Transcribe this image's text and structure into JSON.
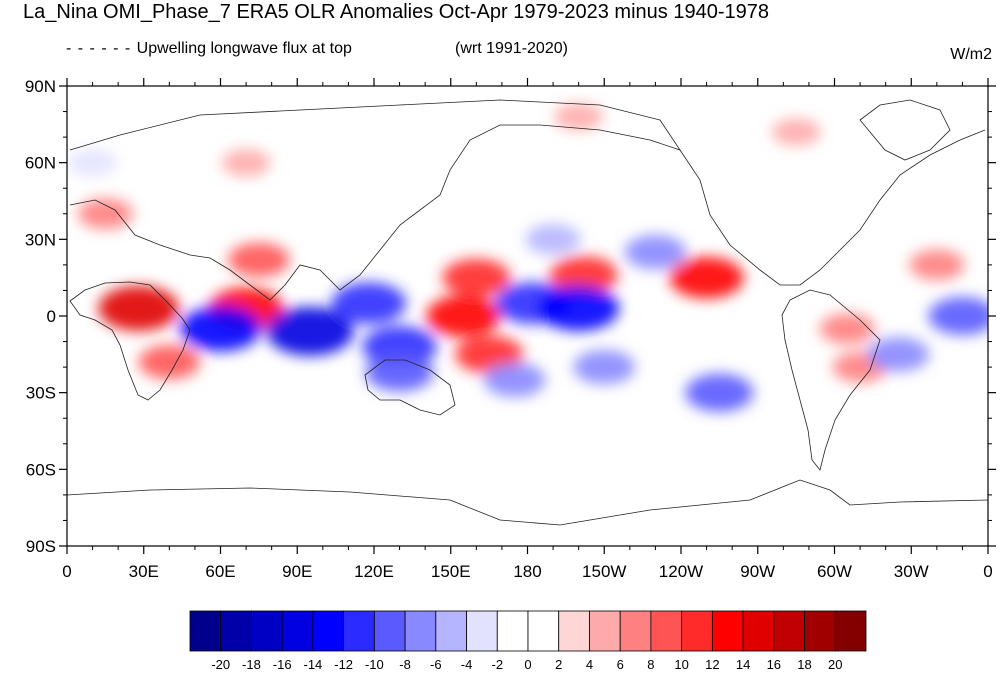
{
  "title": "La_Nina OMI_Phase_7 ERA5 OLR Anomalies Oct-Apr 1979-2023 minus 1940-1978",
  "subtitle_left": "Upwelling longwave flux at top",
  "subtitle_right": "(wrt 1991-2020)",
  "units": "W/m2",
  "map": {
    "lon_range": [
      0,
      360
    ],
    "lat_range": [
      -90,
      90
    ],
    "lat_ticks": [
      {
        "value": 90,
        "label": "90N"
      },
      {
        "value": 60,
        "label": "60N"
      },
      {
        "value": 30,
        "label": "30N"
      },
      {
        "value": 0,
        "label": "0"
      },
      {
        "value": -30,
        "label": "30S"
      },
      {
        "value": -60,
        "label": "60S"
      },
      {
        "value": -90,
        "label": "90S"
      }
    ],
    "lon_ticks": [
      {
        "value": 0,
        "label": "0"
      },
      {
        "value": 30,
        "label": "30E"
      },
      {
        "value": 60,
        "label": "60E"
      },
      {
        "value": 90,
        "label": "90E"
      },
      {
        "value": 120,
        "label": "120E"
      },
      {
        "value": 150,
        "label": "150E"
      },
      {
        "value": 180,
        "label": "180"
      },
      {
        "value": 210,
        "label": "150W"
      },
      {
        "value": 240,
        "label": "120W"
      },
      {
        "value": 270,
        "label": "90W"
      },
      {
        "value": 300,
        "label": "60W"
      },
      {
        "value": 330,
        "label": "30W"
      },
      {
        "value": 360,
        "label": "0"
      }
    ]
  },
  "colorbar": {
    "levels": [
      "-20",
      "-18",
      "-16",
      "-14",
      "-12",
      "-10",
      "-8",
      "-6",
      "-4",
      "-2",
      "0",
      "2",
      "4",
      "6",
      "8",
      "10",
      "12",
      "14",
      "16",
      "18",
      "20"
    ],
    "colors": [
      "#00008c",
      "#0000a8",
      "#0000c4",
      "#0000e0",
      "#0000ff",
      "#2b2bff",
      "#5a5aff",
      "#8888ff",
      "#b5b5ff",
      "#e2e2ff",
      "#ffffff",
      "#ffffff",
      "#ffd6d6",
      "#ffaaaa",
      "#ff8080",
      "#ff5454",
      "#ff2a2a",
      "#ff0000",
      "#e00000",
      "#c00000",
      "#a00000",
      "#840000"
    ]
  },
  "anomaly_regions": [
    {
      "lon": 28,
      "lat": 3,
      "value": 14
    },
    {
      "lon": 70,
      "lat": 3,
      "value": 12
    },
    {
      "lon": 15,
      "lat": 40,
      "value": 6
    },
    {
      "lon": 75,
      "lat": 22,
      "value": 8
    },
    {
      "lon": 155,
      "lat": 0,
      "value": 12
    },
    {
      "lon": 160,
      "lat": 15,
      "value": 10
    },
    {
      "lon": 202,
      "lat": 16,
      "value": 10
    },
    {
      "lon": 250,
      "lat": 15,
      "value": 12
    },
    {
      "lon": 165,
      "lat": -15,
      "value": 10
    },
    {
      "lon": 40,
      "lat": -18,
      "value": 8
    },
    {
      "lon": 310,
      "lat": -20,
      "value": 6
    },
    {
      "lon": 305,
      "lat": -5,
      "value": 6
    },
    {
      "lon": 340,
      "lat": 20,
      "value": 6
    },
    {
      "lon": 200,
      "lat": 78,
      "value": 4
    },
    {
      "lon": 285,
      "lat": 72,
      "value": 4
    },
    {
      "lon": 70,
      "lat": 60,
      "value": 4
    },
    {
      "lon": 95,
      "lat": -6,
      "value": -16
    },
    {
      "lon": 60,
      "lat": -5,
      "value": -14
    },
    {
      "lon": 118,
      "lat": 5,
      "value": -12
    },
    {
      "lon": 130,
      "lat": -12,
      "value": -12
    },
    {
      "lon": 182,
      "lat": 5,
      "value": -12
    },
    {
      "lon": 200,
      "lat": 3,
      "value": -14
    },
    {
      "lon": 130,
      "lat": -22,
      "value": -10
    },
    {
      "lon": 190,
      "lat": 30,
      "value": -6
    },
    {
      "lon": 230,
      "lat": 25,
      "value": -8
    },
    {
      "lon": 210,
      "lat": -20,
      "value": -8
    },
    {
      "lon": 255,
      "lat": -30,
      "value": -10
    },
    {
      "lon": 175,
      "lat": -25,
      "value": -8
    },
    {
      "lon": 350,
      "lat": 0,
      "value": -10
    },
    {
      "lon": 325,
      "lat": -15,
      "value": -8
    },
    {
      "lon": 10,
      "lat": 60,
      "value": -4
    }
  ]
}
